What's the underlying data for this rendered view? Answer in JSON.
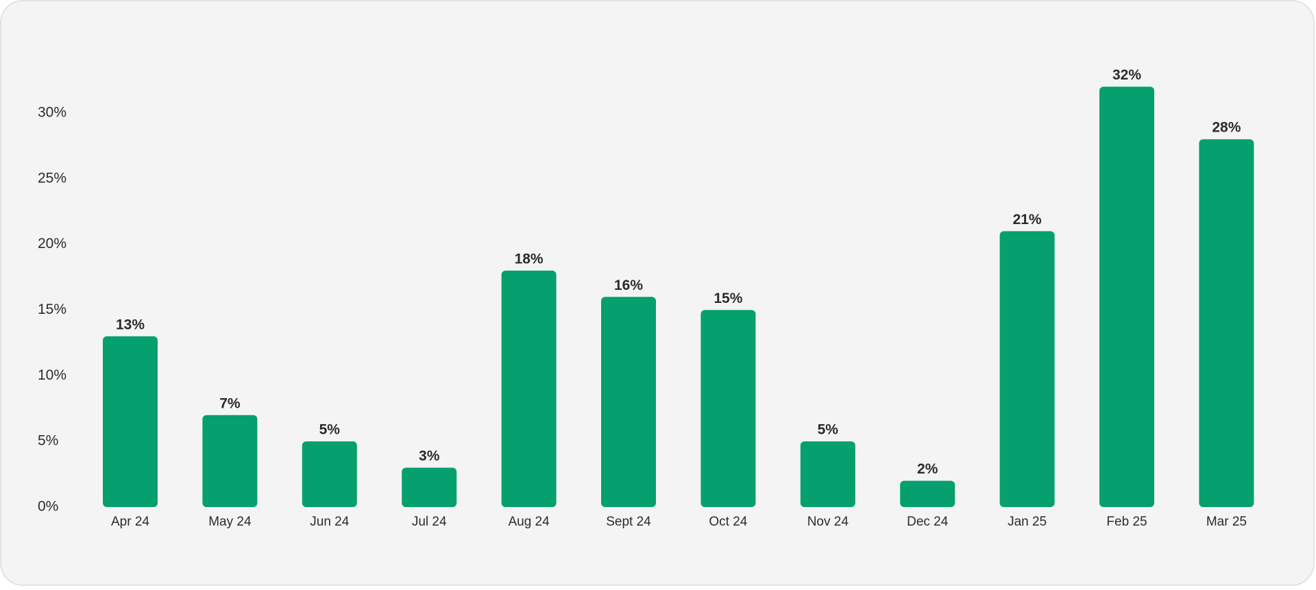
{
  "chart_data": {
    "type": "bar",
    "categories": [
      "Apr 24",
      "May 24",
      "Jun 24",
      "Jul 24",
      "Aug 24",
      "Sept 24",
      "Oct 24",
      "Nov 24",
      "Dec 24",
      "Jan 25",
      "Feb 25",
      "Mar 25"
    ],
    "values": [
      13,
      7,
      5,
      3,
      18,
      16,
      15,
      5,
      2,
      21,
      32,
      28
    ],
    "value_labels": [
      "13%",
      "7%",
      "5%",
      "3%",
      "18%",
      "16%",
      "15%",
      "5%",
      "2%",
      "21%",
      "32%",
      "28%"
    ],
    "color": "#05a06e",
    "ylim": [
      0,
      35
    ],
    "yticks": [
      {
        "value": 0,
        "label": "0%"
      },
      {
        "value": 5,
        "label": "5%"
      },
      {
        "value": 10,
        "label": "10%"
      },
      {
        "value": 15,
        "label": "15%"
      },
      {
        "value": 20,
        "label": "20%"
      },
      {
        "value": 25,
        "label": "25%"
      },
      {
        "value": 30,
        "label": "30%"
      }
    ],
    "grid": false
  }
}
